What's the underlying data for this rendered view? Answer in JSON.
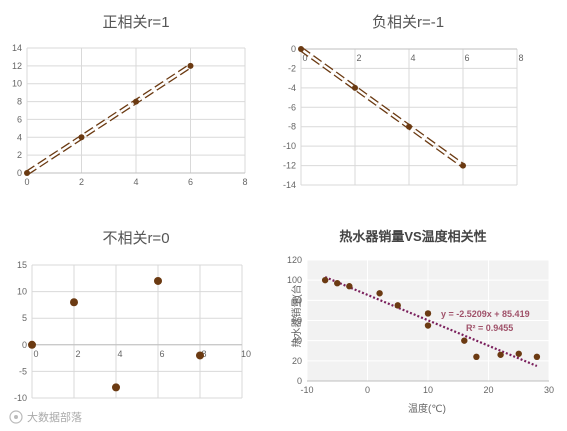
{
  "chart_data": [
    {
      "id": "pos",
      "type": "line",
      "title": "正相关r=1",
      "x": [
        0,
        2,
        4,
        6
      ],
      "y": [
        0,
        4,
        8,
        12
      ],
      "xlim": [
        0,
        8
      ],
      "ylim": [
        0,
        14
      ],
      "xticks": [
        "0",
        "2",
        "4",
        "6",
        "8"
      ],
      "yticks": [
        "0",
        "2",
        "4",
        "6",
        "8",
        "10",
        "12",
        "14"
      ],
      "grid": true,
      "style": "dashed-connector"
    },
    {
      "id": "neg",
      "type": "line",
      "title": "负相关r=-1",
      "x": [
        0,
        2,
        4,
        6
      ],
      "y": [
        0,
        -4,
        -8,
        -12
      ],
      "xlim": [
        0,
        8
      ],
      "ylim": [
        -14,
        0
      ],
      "xticks": [
        "0",
        "2",
        "4",
        "6",
        "8"
      ],
      "yticks": [
        "0",
        "-2",
        "-4",
        "-6",
        "-8",
        "-10",
        "-12",
        "-14"
      ],
      "grid": true,
      "style": "dashed-connector"
    },
    {
      "id": "none",
      "type": "scatter",
      "title": "不相关r=0",
      "x": [
        0,
        2,
        4,
        6,
        8
      ],
      "y": [
        0,
        8,
        -8,
        12,
        -2
      ],
      "xlim": [
        0,
        10
      ],
      "ylim": [
        -10,
        15
      ],
      "xticks": [
        "0",
        "2",
        "4",
        "6",
        "8",
        "10"
      ],
      "yticks": [
        "-10",
        "-5",
        "0",
        "5",
        "10",
        "15"
      ],
      "grid": true
    },
    {
      "id": "heater",
      "type": "scatter",
      "title": "热水器销量VS温度相关性",
      "xlabel": "温度(℃)",
      "ylabel": "热水器销量(台",
      "x": [
        -7,
        -5,
        -3,
        2,
        5,
        10,
        10,
        16,
        18,
        22,
        25,
        28
      ],
      "y": [
        100,
        97,
        94,
        87,
        75,
        67,
        55,
        40,
        24,
        26,
        27,
        24
      ],
      "xlim": [
        -10,
        30
      ],
      "ylim": [
        0,
        120
      ],
      "xticks": [
        "-10",
        "0",
        "10",
        "20",
        "30"
      ],
      "yticks": [
        "0",
        "20",
        "40",
        "60",
        "80",
        "100",
        "120"
      ],
      "grid": true,
      "trendline": {
        "slope": -2.5209,
        "intercept": 85.419,
        "equation": "y = -2.5209x + 85.419",
        "r2": "R² = 0.9455"
      }
    }
  ],
  "watermark": "大数据部落",
  "colors": {
    "marker": "#6b3a12",
    "grid": "#d9d9d9",
    "trend": "#7a1f5c",
    "plot_bg": "#ffffff",
    "plot_bg_heater": "#f2f2f2"
  }
}
